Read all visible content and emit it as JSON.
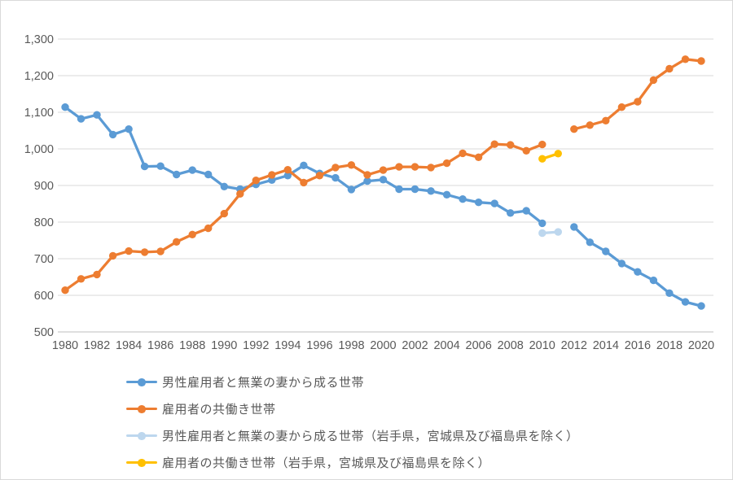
{
  "chart_data": {
    "type": "line",
    "title": "",
    "xlabel": "",
    "ylabel": "",
    "x": [
      1980,
      1981,
      1982,
      1983,
      1984,
      1985,
      1986,
      1987,
      1988,
      1989,
      1990,
      1991,
      1992,
      1993,
      1994,
      1995,
      1996,
      1997,
      1998,
      1999,
      2000,
      2001,
      2002,
      2003,
      2004,
      2005,
      2006,
      2007,
      2008,
      2009,
      2010,
      2011,
      2012,
      2013,
      2014,
      2015,
      2016,
      2017,
      2018,
      2019,
      2020
    ],
    "x_tick_labels": [
      "1980",
      "1982",
      "1984",
      "1986",
      "1988",
      "1990",
      "1992",
      "1994",
      "1996",
      "1998",
      "2000",
      "2002",
      "2004",
      "2006",
      "2008",
      "2010",
      "2012",
      "2014",
      "2016",
      "2018",
      "2020"
    ],
    "y_ticks": [
      {
        "value": 1300,
        "label": "1,300"
      },
      {
        "value": 1200,
        "label": "1,200"
      },
      {
        "value": 1100,
        "label": "1,100"
      },
      {
        "value": 1000,
        "label": "1,000"
      },
      {
        "value": 900,
        "label": "900"
      },
      {
        "value": 800,
        "label": "800"
      },
      {
        "value": 700,
        "label": "700"
      },
      {
        "value": 600,
        "label": "600"
      },
      {
        "value": 500,
        "label": "500"
      }
    ],
    "ylim": [
      500,
      1300
    ],
    "grid": "horizontal",
    "legend_position": "bottom-left",
    "series": [
      {
        "name": "男性雇用者と無業の妻から成る世帯",
        "color": "#5B9BD5",
        "values": [
          1114,
          1082,
          1093,
          1039,
          1054,
          952,
          953,
          930,
          942,
          930,
          897,
          890,
          903,
          915,
          927,
          955,
          933,
          921,
          889,
          912,
          916,
          890,
          890,
          885,
          875,
          863,
          854,
          851,
          825,
          831,
          797,
          null,
          787,
          745,
          720,
          687,
          664,
          641,
          606,
          582,
          571
        ]
      },
      {
        "name": "雇用者の共働き世帯",
        "color": "#ED7D31",
        "values": [
          614,
          645,
          657,
          708,
          721,
          718,
          720,
          746,
          766,
          783,
          823,
          877,
          914,
          929,
          943,
          908,
          927,
          949,
          956,
          929,
          942,
          951,
          951,
          949,
          961,
          988,
          977,
          1013,
          1011,
          995,
          1012,
          null,
          1054,
          1065,
          1077,
          1114,
          1129,
          1188,
          1219,
          1245,
          1240
        ]
      },
      {
        "name": "男性雇用者と無業の妻から成る世帯（岩手県，宮城県及び福島県を除く）",
        "color": "#BDD7EE",
        "values": [
          null,
          null,
          null,
          null,
          null,
          null,
          null,
          null,
          null,
          null,
          null,
          null,
          null,
          null,
          null,
          null,
          null,
          null,
          null,
          null,
          null,
          null,
          null,
          null,
          null,
          null,
          null,
          null,
          null,
          null,
          770,
          773,
          null,
          null,
          null,
          null,
          null,
          null,
          null,
          null,
          null
        ]
      },
      {
        "name": "雇用者の共働き世帯（岩手県，宮城県及び福島県を除く）",
        "color": "#FFC000",
        "values": [
          null,
          null,
          null,
          null,
          null,
          null,
          null,
          null,
          null,
          null,
          null,
          null,
          null,
          null,
          null,
          null,
          null,
          null,
          null,
          null,
          null,
          null,
          null,
          null,
          null,
          null,
          null,
          null,
          null,
          null,
          973,
          987,
          null,
          null,
          null,
          null,
          null,
          null,
          null,
          null,
          null
        ]
      }
    ]
  },
  "colors": {
    "grid": "#D9D9D9",
    "axis_line": "#BFBFBF",
    "tick_label": "#595959",
    "background": "#FFFFFF"
  }
}
